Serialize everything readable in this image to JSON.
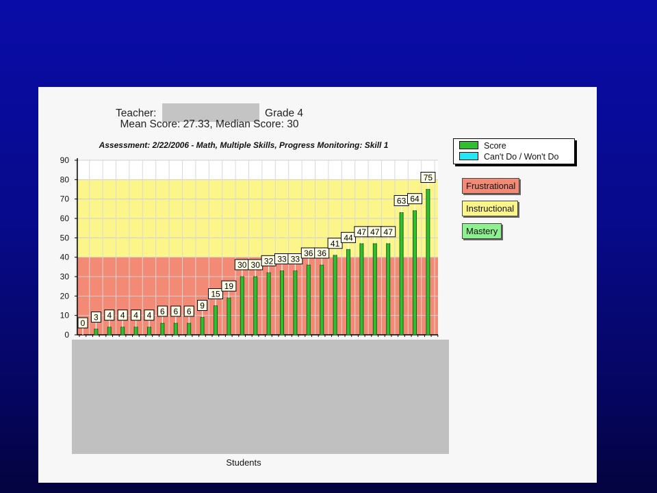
{
  "header": {
    "teacher_label": "Teacher:",
    "grade": "Grade 4",
    "stats": "Mean Score: 27.33, Median Score: 30"
  },
  "legend": {
    "items": [
      {
        "label": "Score",
        "color": "#2fbf2f"
      },
      {
        "label": "Can't Do / Won't Do",
        "color": "#23e7f5"
      }
    ]
  },
  "bands": [
    {
      "label": "Frustrational",
      "color": "#f38a76",
      "from": 0,
      "to": 40
    },
    {
      "label": "Instructional",
      "color": "#fbf58a",
      "from": 40,
      "to": 80
    },
    {
      "label": "Mastery",
      "color": "#8ef08e"
    }
  ],
  "chart_data": {
    "type": "bar",
    "title": "Assessment: 2/22/2006 - Math, Multiple Skills, Progress Monitoring: Skill 1",
    "xlabel": "Students",
    "ylabel": "",
    "ylim": [
      0,
      90
    ],
    "yticks": [
      0,
      10,
      20,
      30,
      40,
      50,
      60,
      70,
      80,
      90
    ],
    "grid": true,
    "legend_position": "right",
    "series": [
      {
        "name": "Score",
        "color": "#2fbf2f",
        "values": [
          0,
          3,
          4,
          4,
          4,
          4,
          6,
          6,
          6,
          9,
          15,
          19,
          30,
          30,
          32,
          33,
          33,
          36,
          36,
          41,
          44,
          47,
          47,
          47,
          63,
          64,
          75
        ]
      }
    ]
  }
}
